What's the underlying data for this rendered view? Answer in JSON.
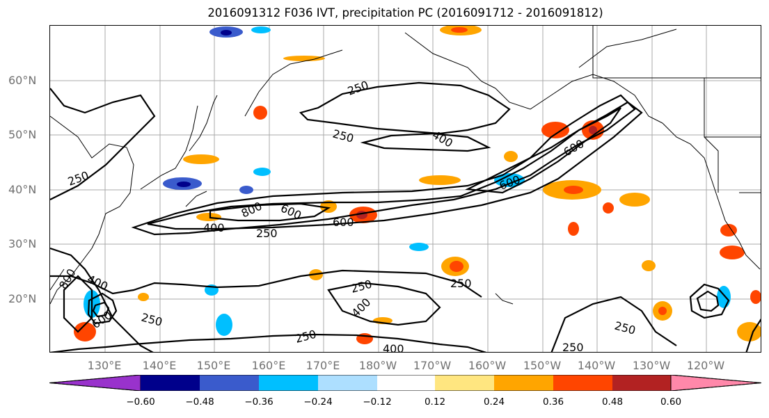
{
  "title": "2016091312 F036 IVT, precipitation PC (2016091712 - 2016091812)",
  "lat_labels": [
    "60°N",
    "50°N",
    "40°N",
    "30°N",
    "20°N"
  ],
  "lon_labels": [
    "130°E",
    "140°E",
    "150°E",
    "160°E",
    "170°E",
    "180°W",
    "170°W",
    "160°W",
    "150°W",
    "140°W",
    "130°W",
    "120°W"
  ],
  "contour_labels": [
    "250",
    "250",
    "250",
    "250",
    "250",
    "250",
    "250",
    "250",
    "250",
    "250",
    "400",
    "400",
    "400",
    "400",
    "400",
    "600",
    "600",
    "600",
    "600",
    "600",
    "800",
    "800"
  ],
  "colorbar": {
    "ticks": [
      "−0.60",
      "−0.48",
      "−0.36",
      "−0.24",
      "−0.12",
      "0.12",
      "0.24",
      "0.36",
      "0.48",
      "0.60"
    ],
    "colors": [
      "#9932CC",
      "#00008B",
      "#3A5BCC",
      "#00BFFF",
      "#ADDFFF",
      "#FFFFFF",
      "#FFE680",
      "#FFA500",
      "#FF4500",
      "#B22222",
      "#FF88AA"
    ]
  }
}
